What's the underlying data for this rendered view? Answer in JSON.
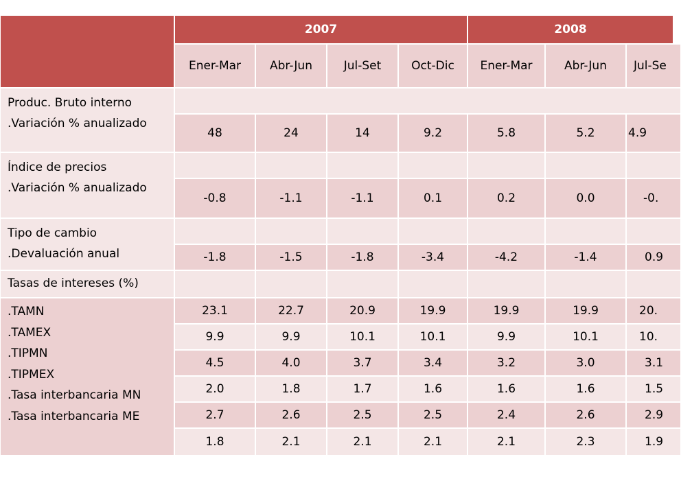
{
  "header": {
    "years": [
      "2007",
      "2008"
    ],
    "quarters": [
      "Ener-Mar",
      "Abr-Jun",
      "Jul-Set",
      "Oct-Dic",
      "Ener-Mar",
      "Abr-Jun",
      "Jul-Se"
    ]
  },
  "sections": [
    {
      "lines": [
        "Produc. Bruto interno",
        ".Variación % anualizado"
      ],
      "values": [
        "48",
        "24",
        "14",
        "9.2",
        "5.8",
        "5.2",
        "4.9"
      ]
    },
    {
      "lines": [
        "Índice de precios",
        ".Variación % anualizado"
      ],
      "values": [
        "-0.8",
        "-1.1",
        "-1.1",
        "0.1",
        "0.2",
        "0.0",
        "-0."
      ]
    },
    {
      "lines": [
        "Tipo de cambio",
        ".Devaluación anual"
      ],
      "values": [
        "-1.8",
        "-1.5",
        "-1.8",
        "-3.4",
        "-4.2",
        "-1.4",
        "0.9"
      ]
    },
    {
      "lines": [
        "Tasas de intereses (%)"
      ]
    },
    {
      "lines": [
        ".TAMN",
        ".TAMEX",
        ".TIPMN",
        ".TIPMEX",
        ".Tasa interbancaria MN",
        ".Tasa interbancaria ME"
      ],
      "rows": [
        [
          "23.1",
          "22.7",
          "20.9",
          "19.9",
          "19.9",
          "19.9",
          "20."
        ],
        [
          "9.9",
          "9.9",
          "10.1",
          "10.1",
          "9.9",
          "10.1",
          "10."
        ],
        [
          "4.5",
          "4.0",
          "3.7",
          "3.4",
          "3.2",
          "3.0",
          "3.1"
        ],
        [
          "2.0",
          "1.8",
          "1.7",
          "1.6",
          "1.6",
          "1.6",
          "1.5"
        ],
        [
          "2.7",
          "2.6",
          "2.5",
          "2.5",
          "2.4",
          "2.6",
          "2.9"
        ],
        [
          "1.8",
          "2.1",
          "2.1",
          "2.1",
          "2.1",
          "2.3",
          "1.9"
        ]
      ]
    }
  ]
}
